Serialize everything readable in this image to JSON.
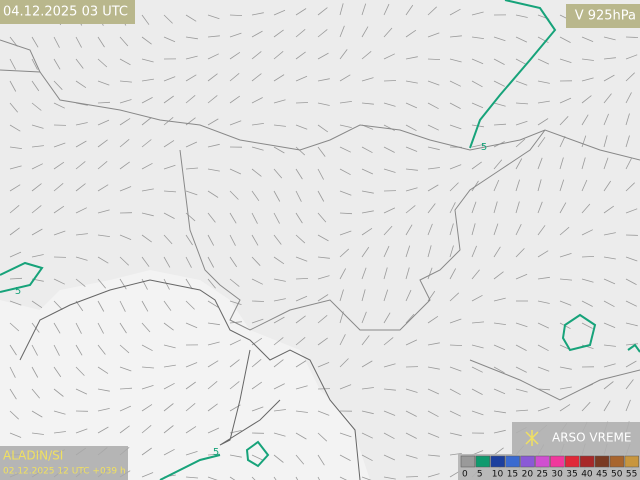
{
  "header": {
    "valid_time": "04.12.2025 03 UTC",
    "field": "V 925hPa"
  },
  "footer": {
    "model": "ALADIN/SI",
    "run": "02.12.2025 12 UTC +039 h",
    "brand": "ARSO VREME"
  },
  "contour_labels": [
    5,
    5,
    5
  ],
  "legend": {
    "items": [
      {
        "label": 0,
        "color": "#9a9a9a"
      },
      {
        "label": 5,
        "color": "#0f9a6e"
      },
      {
        "label": 10,
        "color": "#1c3f9e"
      },
      {
        "label": 15,
        "color": "#3a6ad0"
      },
      {
        "label": 20,
        "color": "#8a5ad6"
      },
      {
        "label": 25,
        "color": "#d050d0"
      },
      {
        "label": 30,
        "color": "#f0389c"
      },
      {
        "label": 35,
        "color": "#e02838"
      },
      {
        "label": 40,
        "color": "#a82828"
      },
      {
        "label": 45,
        "color": "#7a3a22"
      },
      {
        "label": 50,
        "color": "#a8652e"
      },
      {
        "label": 55,
        "color": "#c8963e"
      }
    ]
  }
}
